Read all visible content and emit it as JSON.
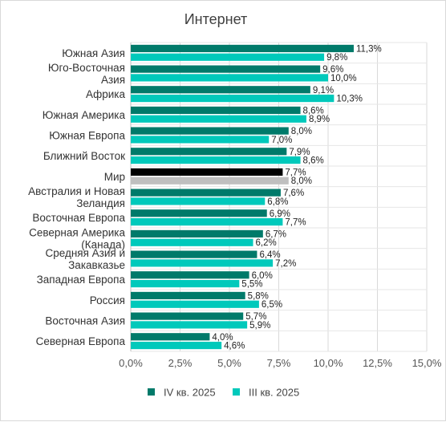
{
  "chart_data": {
    "type": "bar",
    "orientation": "horizontal",
    "title": "Интернет",
    "categories": [
      [
        "Южная Азия"
      ],
      [
        "Юго-Восточная",
        "Азия"
      ],
      [
        "Африка"
      ],
      [
        "Южная Америка"
      ],
      [
        "Южная Европа"
      ],
      [
        "Ближний Восток"
      ],
      [
        "Мир"
      ],
      [
        "Австралия и Новая",
        "Зеландия"
      ],
      [
        "Восточная Европа"
      ],
      [
        "Северная Америка",
        "(Канада)"
      ],
      [
        "Средняя Азия и",
        "Закавказье"
      ],
      [
        "Западная Европа"
      ],
      [
        "Россия"
      ],
      [
        "Восточная Азия"
      ],
      [
        "Северная Европа"
      ]
    ],
    "series": [
      {
        "name": "IV кв. 2025",
        "color": "#007a6a",
        "values": [
          11.3,
          9.6,
          9.1,
          8.6,
          8.0,
          7.9,
          7.7,
          7.6,
          6.9,
          6.7,
          6.4,
          6.0,
          5.8,
          5.7,
          4.0
        ],
        "labels": [
          "11,3%",
          "9,6%",
          "9,1%",
          "8,6%",
          "8,0%",
          "7,9%",
          "7,7%",
          "7,6%",
          "6,9%",
          "6,7%",
          "6,4%",
          "6,0%",
          "5,8%",
          "5,7%",
          "4,0%"
        ]
      },
      {
        "name": "III кв. 2025",
        "color": "#00c9bb",
        "values": [
          9.8,
          10.0,
          10.3,
          8.9,
          7.0,
          8.6,
          8.0,
          6.8,
          7.7,
          6.2,
          7.2,
          5.5,
          6.5,
          5.9,
          4.6
        ],
        "labels": [
          "9,8%",
          "10,0%",
          "10,3%",
          "8,9%",
          "7,0%",
          "8,6%",
          "8,0%",
          "6,8%",
          "7,7%",
          "6,2%",
          "7,2%",
          "5,5%",
          "6,5%",
          "5,9%",
          "4,6%"
        ]
      }
    ],
    "highlight": {
      "category_index": 6,
      "colors": [
        "#000000",
        "#bfbfbf"
      ]
    },
    "xlim": [
      0,
      15
    ],
    "xticks": [
      0,
      2.5,
      5,
      7.5,
      10,
      12.5,
      15
    ],
    "xtick_labels": [
      "0,0%",
      "2,5%",
      "5,0%",
      "7,5%",
      "10,0%",
      "12,5%",
      "15,0%"
    ],
    "grid": true,
    "legend": "bottom"
  }
}
